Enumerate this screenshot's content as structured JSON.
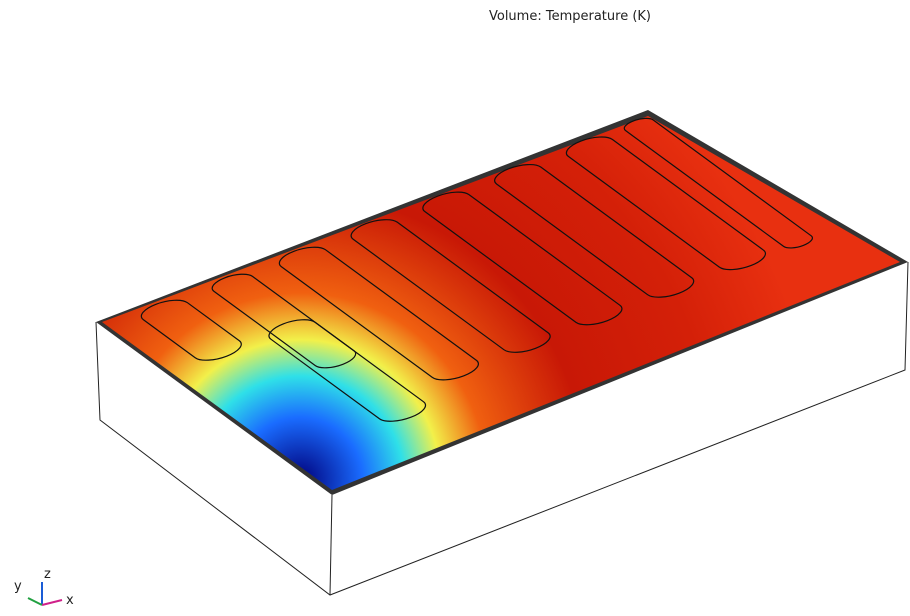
{
  "title": "Volume: Temperature (K)",
  "axes": {
    "z": "z",
    "y": "y",
    "x": "x"
  }
}
